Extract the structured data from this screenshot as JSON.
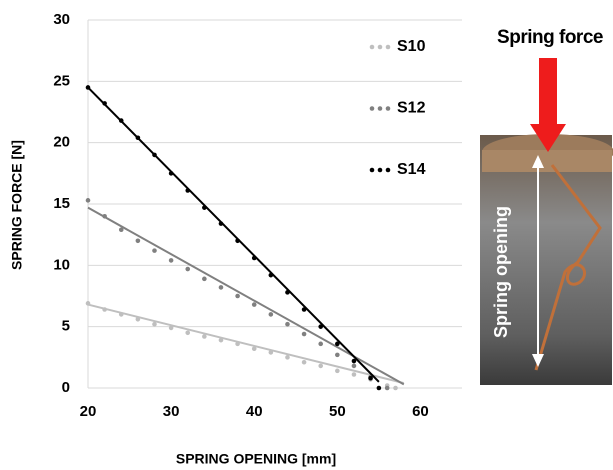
{
  "chart_data": {
    "type": "scatter",
    "xlabel": "SPRING OPENING [mm]",
    "ylabel": "SPRING FORCE [N]",
    "xlim": [
      20,
      65
    ],
    "xticks": [
      20,
      30,
      40,
      50,
      60
    ],
    "ylim": [
      0,
      30
    ],
    "yticks": [
      0,
      5,
      10,
      15,
      20,
      25,
      30
    ],
    "grid": true,
    "legend": "upper right",
    "series": [
      {
        "name": "S10",
        "color": "#bfbfbf",
        "x": [
          20,
          22,
          24,
          26,
          28,
          30,
          32,
          34,
          36,
          38,
          40,
          42,
          44,
          46,
          48,
          50,
          52,
          54,
          56,
          57
        ],
        "values": [
          6.9,
          6.4,
          6.0,
          5.6,
          5.2,
          4.9,
          4.5,
          4.2,
          3.9,
          3.6,
          3.2,
          2.9,
          2.5,
          2.1,
          1.8,
          1.4,
          1.1,
          0.7,
          0.2,
          0
        ],
        "trend": {
          "x": [
            20,
            58
          ],
          "values": [
            6.8,
            0.4
          ]
        }
      },
      {
        "name": "S12",
        "color": "#808080",
        "x": [
          20,
          22,
          24,
          26,
          28,
          30,
          32,
          34,
          36,
          38,
          40,
          42,
          44,
          46,
          48,
          50,
          52,
          54,
          56
        ],
        "values": [
          15.3,
          14.0,
          12.9,
          12.0,
          11.2,
          10.4,
          9.7,
          8.9,
          8.2,
          7.5,
          6.8,
          6.0,
          5.2,
          4.4,
          3.6,
          2.7,
          1.8,
          0.9,
          0
        ],
        "trend": {
          "x": [
            20,
            58
          ],
          "values": [
            14.7,
            0.3
          ]
        }
      },
      {
        "name": "S14",
        "color": "#000000",
        "x": [
          20,
          22,
          24,
          26,
          28,
          30,
          32,
          34,
          36,
          38,
          40,
          42,
          44,
          46,
          48,
          50,
          52,
          54,
          55
        ],
        "values": [
          24.5,
          23.2,
          21.8,
          20.4,
          19.0,
          17.5,
          16.1,
          14.7,
          13.4,
          12.0,
          10.6,
          9.2,
          7.8,
          6.4,
          5.0,
          3.6,
          2.2,
          0.8,
          0
        ],
        "trend": {
          "x": [
            20,
            55
          ],
          "values": [
            24.5,
            0.5
          ]
        }
      }
    ],
    "annotations": {
      "force": "Spring force",
      "opening": "Spring opening"
    }
  }
}
